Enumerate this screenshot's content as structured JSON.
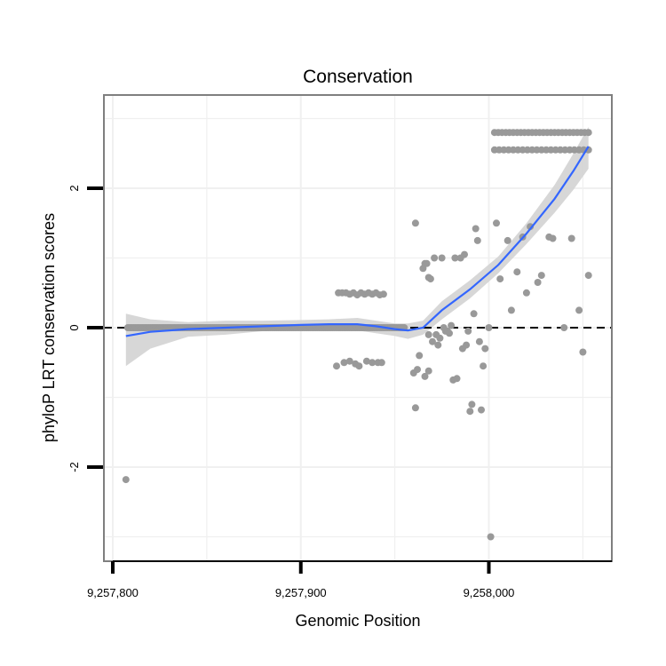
{
  "chart_data": {
    "type": "scatter",
    "title": "Conservation",
    "xlabel": "Genomic Position",
    "ylabel": "phyloP LRT conservation scores",
    "xlim": [
      9257800,
      9258068
    ],
    "ylim": [
      -3.3,
      3.3
    ],
    "x_ticks": [
      9257800,
      9257900,
      9258000
    ],
    "x_tick_labels": [
      "9,257,800",
      "9,257,900",
      "9,258,000"
    ],
    "y_ticks": [
      -2,
      0,
      2
    ],
    "y_tick_labels": [
      "-2",
      "0",
      "2"
    ],
    "grid": true,
    "reference_line": {
      "y": 0,
      "style": "dashed"
    },
    "colors": {
      "points": "#999999",
      "smooth": "#3366ff",
      "band": "#d3d3d3",
      "frame": "#7f7f7f",
      "grid": "#f0f0f0"
    },
    "points": [
      [
        9257807,
        -2.18
      ],
      [
        9257920,
        0.5
      ],
      [
        9257922,
        0.5
      ],
      [
        9257924,
        0.5
      ],
      [
        9257926,
        0.48
      ],
      [
        9257928,
        0.5
      ],
      [
        9257930,
        0.47
      ],
      [
        9257932,
        0.5
      ],
      [
        9257934,
        0.48
      ],
      [
        9257936,
        0.5
      ],
      [
        9257938,
        0.48
      ],
      [
        9257940,
        0.5
      ],
      [
        9257942,
        0.47
      ],
      [
        9257944,
        0.48
      ],
      [
        9257919,
        -0.55
      ],
      [
        9257923,
        -0.5
      ],
      [
        9257926,
        -0.48
      ],
      [
        9257929,
        -0.52
      ],
      [
        9257931,
        -0.55
      ],
      [
        9257935,
        -0.48
      ],
      [
        9257938,
        -0.5
      ],
      [
        9257941,
        -0.5
      ],
      [
        9257943,
        -0.5
      ],
      [
        9257961,
        1.5
      ],
      [
        9257960,
        -0.65
      ],
      [
        9257962,
        -0.6
      ],
      [
        9257963,
        -0.4
      ],
      [
        9257961,
        -1.15
      ],
      [
        9257965,
        0.85
      ],
      [
        9257966,
        0.92
      ],
      [
        9257967,
        0.92
      ],
      [
        9257968,
        0.72
      ],
      [
        9257969,
        0.7
      ],
      [
        9257966,
        -0.7
      ],
      [
        9257968,
        -0.62
      ],
      [
        9257968,
        -0.1
      ],
      [
        9257970,
        -0.2
      ],
      [
        9257971,
        1.0
      ],
      [
        9257972,
        -0.1
      ],
      [
        9257973,
        -0.25
      ],
      [
        9257974,
        -0.15
      ],
      [
        9257975,
        1.0
      ],
      [
        9257976,
        0.0
      ],
      [
        9257977,
        -0.05
      ],
      [
        9257978,
        -0.05
      ],
      [
        9257979,
        -0.08
      ],
      [
        9257980,
        0.03
      ],
      [
        9257981,
        -0.75
      ],
      [
        9257982,
        1.0
      ],
      [
        9257983,
        -0.73
      ],
      [
        9257985,
        1.0
      ],
      [
        9257986,
        -0.3
      ],
      [
        9257987,
        1.05
      ],
      [
        9257988,
        -0.25
      ],
      [
        9257989,
        -0.05
      ],
      [
        9257990,
        -1.2
      ],
      [
        9257991,
        -1.1
      ],
      [
        9257992,
        0.2
      ],
      [
        9257993,
        1.42
      ],
      [
        9257994,
        1.25
      ],
      [
        9257995,
        -0.2
      ],
      [
        9257996,
        -1.18
      ],
      [
        9257997,
        -0.55
      ],
      [
        9257998,
        -0.3
      ],
      [
        9258000,
        0.0
      ],
      [
        9258001,
        -3.0
      ],
      [
        9258004,
        1.5
      ],
      [
        9258006,
        0.7
      ],
      [
        9258010,
        1.25
      ],
      [
        9258012,
        0.25
      ],
      [
        9258015,
        0.8
      ],
      [
        9258018,
        1.3
      ],
      [
        9258020,
        0.5
      ],
      [
        9258022,
        1.45
      ],
      [
        9258026,
        0.65
      ],
      [
        9258028,
        0.75
      ],
      [
        9258032,
        1.3
      ],
      [
        9258034,
        1.28
      ],
      [
        9258040,
        0.0
      ],
      [
        9258044,
        1.28
      ],
      [
        9258048,
        0.25
      ],
      [
        9258050,
        -0.35
      ],
      [
        9258053,
        0.75
      ]
    ],
    "point_rows": [
      {
        "y": 2.8,
        "x_from": 9258003,
        "x_to": 9258053,
        "step": 2
      },
      {
        "y": 2.55,
        "x_from": 9258003,
        "x_to": 9258053,
        "step": 2.5
      },
      {
        "y": 0.0,
        "x_from": 9257808,
        "x_to": 9257955,
        "step": 1
      }
    ],
    "smooth": {
      "x": [
        9257807,
        9257820,
        9257840,
        9257860,
        9257880,
        9257900,
        9257915,
        9257930,
        9257940,
        9257950,
        9257957,
        9257965,
        9257975,
        9257990,
        9258005,
        9258020,
        9258035,
        9258045,
        9258053
      ],
      "y": [
        -0.12,
        -0.06,
        -0.02,
        0.0,
        0.02,
        0.04,
        0.05,
        0.05,
        0.02,
        -0.02,
        -0.04,
        0.0,
        0.25,
        0.55,
        0.9,
        1.35,
        1.85,
        2.25,
        2.6
      ],
      "lower": [
        -0.55,
        -0.3,
        -0.13,
        -0.1,
        -0.05,
        -0.03,
        -0.02,
        -0.04,
        -0.08,
        -0.12,
        -0.16,
        -0.1,
        0.12,
        0.42,
        0.78,
        1.2,
        1.65,
        1.98,
        2.28
      ],
      "upper": [
        0.2,
        0.12,
        0.08,
        0.1,
        0.1,
        0.11,
        0.12,
        0.14,
        0.1,
        0.06,
        0.06,
        0.1,
        0.38,
        0.68,
        1.02,
        1.5,
        2.05,
        2.5,
        2.88
      ]
    }
  }
}
